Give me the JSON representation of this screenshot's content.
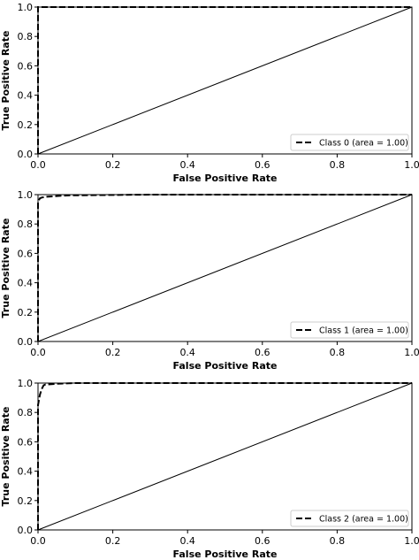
{
  "chart_data": [
    {
      "type": "line",
      "xlabel": "False Positive Rate",
      "ylabel": "True Positive Rate",
      "xlim": [
        0.0,
        1.0
      ],
      "ylim": [
        0.0,
        1.0
      ],
      "xticks": [
        "0.0",
        "0.2",
        "0.4",
        "0.6",
        "0.8",
        "1.0"
      ],
      "yticks": [
        "0.0",
        "0.2",
        "0.4",
        "0.6",
        "0.8",
        "1.0"
      ],
      "grid": false,
      "legend_position": "lower-right",
      "series": [
        {
          "name": "Class 0 (area = 1.00)",
          "style": "dashed",
          "x": [
            0.0,
            0.0,
            1.0
          ],
          "y": [
            0.0,
            1.0,
            1.0
          ]
        },
        {
          "style": "solid",
          "x": [
            0.0,
            1.0
          ],
          "y": [
            0.0,
            1.0
          ]
        }
      ]
    },
    {
      "type": "line",
      "xlabel": "False Positive Rate",
      "ylabel": "True Positive Rate",
      "xlim": [
        0.0,
        1.0
      ],
      "ylim": [
        0.0,
        1.0
      ],
      "xticks": [
        "0.0",
        "0.2",
        "0.4",
        "0.6",
        "0.8",
        "1.0"
      ],
      "yticks": [
        "0.0",
        "0.2",
        "0.4",
        "0.6",
        "0.8",
        "1.0"
      ],
      "grid": false,
      "legend_position": "lower-right",
      "series": [
        {
          "name": "Class 1 (area = 1.00)",
          "style": "dashed",
          "x": [
            0.0,
            0.0,
            0.005,
            0.01,
            0.02,
            0.05,
            0.08,
            0.3,
            1.0
          ],
          "y": [
            0.0,
            0.95,
            0.975,
            0.98,
            0.985,
            0.99,
            0.995,
            1.0,
            1.0
          ]
        },
        {
          "style": "solid",
          "x": [
            0.0,
            1.0
          ],
          "y": [
            0.0,
            1.0
          ]
        }
      ]
    },
    {
      "type": "line",
      "xlabel": "False Positive Rate",
      "ylabel": "True Positive Rate",
      "xlim": [
        0.0,
        1.0
      ],
      "ylim": [
        0.0,
        1.0
      ],
      "xticks": [
        "0.0",
        "0.2",
        "0.4",
        "0.6",
        "0.8",
        "1.0"
      ],
      "yticks": [
        "0.0",
        "0.2",
        "0.4",
        "0.6",
        "0.8",
        "1.0"
      ],
      "grid": false,
      "legend_position": "lower-right",
      "series": [
        {
          "name": "Class 2 (area = 1.00)",
          "style": "dashed",
          "x": [
            0.0,
            0.0,
            0.005,
            0.01,
            0.015,
            0.02,
            0.05,
            0.1,
            1.0
          ],
          "y": [
            0.0,
            0.85,
            0.92,
            0.96,
            0.985,
            0.99,
            0.995,
            1.0,
            1.0
          ]
        },
        {
          "style": "solid",
          "x": [
            0.0,
            1.0
          ],
          "y": [
            0.0,
            1.0
          ]
        }
      ]
    }
  ]
}
